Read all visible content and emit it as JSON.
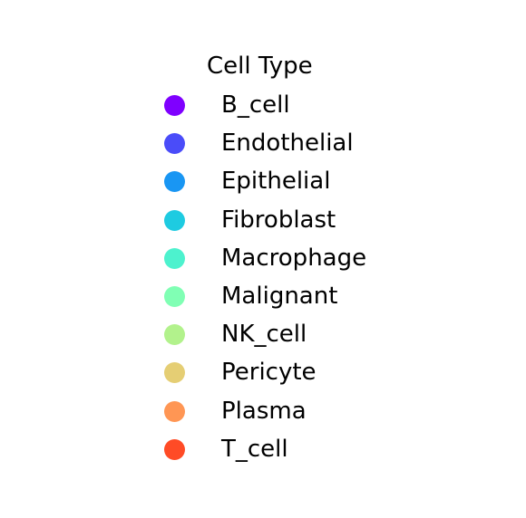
{
  "chart_data": {
    "type": "scatter",
    "title": "",
    "xlabel": "",
    "ylabel": "",
    "legend": {
      "title": "Cell Type",
      "placement": "center",
      "entries": [
        {
          "name": "B_cell",
          "color": "#7f00ff"
        },
        {
          "name": "Endothelial",
          "color": "#4a4cf9"
        },
        {
          "name": "Epithelial",
          "color": "#1996f3"
        },
        {
          "name": "Fibroblast",
          "color": "#1ecbe1"
        },
        {
          "name": "Macrophage",
          "color": "#4df2ce"
        },
        {
          "name": "Malignant",
          "color": "#80ffb4"
        },
        {
          "name": "NK_cell",
          "color": "#b2f28c"
        },
        {
          "name": "Pericyte",
          "color": "#e5ce74"
        },
        {
          "name": "Plasma",
          "color": "#ff9654"
        },
        {
          "name": "T_cell",
          "color": "#ff4b26"
        }
      ]
    }
  }
}
